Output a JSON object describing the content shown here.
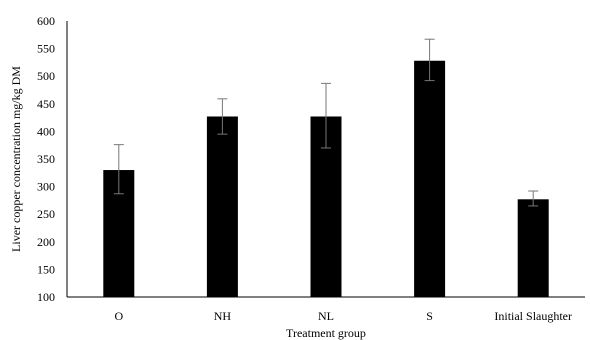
{
  "chart_data": {
    "type": "bar",
    "title": "",
    "xlabel": "Treatment group",
    "ylabel": "Liver copper concentration mg/kg DM",
    "ylim": [
      100,
      600
    ],
    "y_ticks": [
      100,
      150,
      200,
      250,
      300,
      350,
      400,
      450,
      500,
      550,
      600
    ],
    "y_tick_labels": [
      "100",
      "150",
      "200",
      "250",
      "300",
      "350",
      "400",
      "450",
      "500",
      "550",
      "600"
    ],
    "categories": [
      "O",
      "NH",
      "NL",
      "S",
      "Initial Slaughter"
    ],
    "values": [
      330,
      427,
      427,
      528,
      277
    ],
    "error_low": [
      287,
      395,
      370,
      492,
      265
    ],
    "error_high": [
      376,
      459,
      487,
      567,
      292
    ],
    "grid": false,
    "legend": "none",
    "bar_color": "#000000",
    "error_bar_color": "#777777"
  }
}
